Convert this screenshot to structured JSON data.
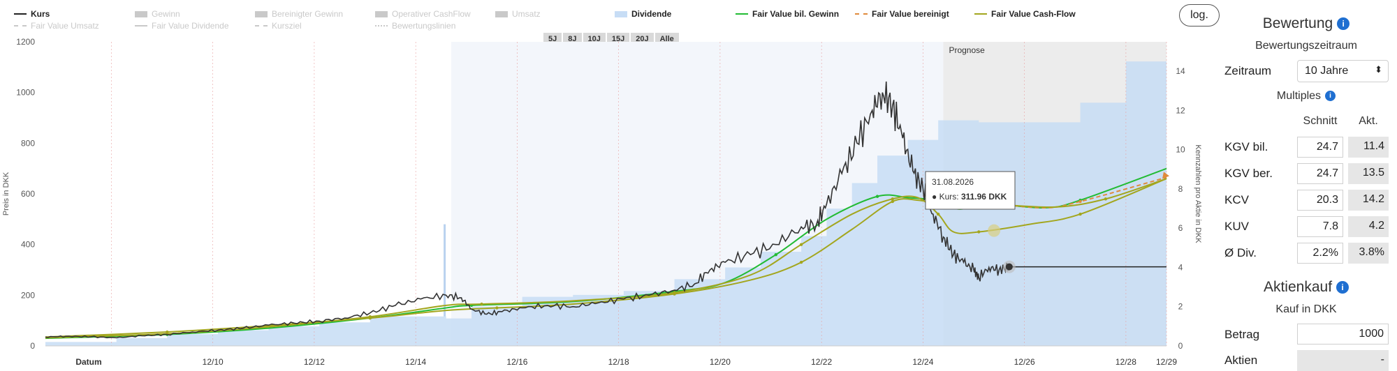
{
  "legend": [
    {
      "label": "Kurs",
      "active": true,
      "color": "#222222",
      "style": "line"
    },
    {
      "label": "Gewinn",
      "active": false,
      "color": "#c9c9c9",
      "style": "box"
    },
    {
      "label": "Bereinigter Gewinn",
      "active": false,
      "color": "#c9c9c9",
      "style": "box"
    },
    {
      "label": "Operativer CashFlow",
      "active": false,
      "color": "#c9c9c9",
      "style": "box"
    },
    {
      "label": "Umsatz",
      "active": false,
      "color": "#c9c9c9",
      "style": "box"
    },
    {
      "label": "Dividende",
      "active": true,
      "color": "#c7ddf5",
      "style": "box"
    },
    {
      "label": "Fair Value bil. Gewinn",
      "active": true,
      "color": "#22bb33",
      "style": "line"
    },
    {
      "label": "Fair Value bereinigt",
      "active": true,
      "color": "#e08a3c",
      "style": "dash"
    },
    {
      "label": "Fair Value Cash-Flow",
      "active": true,
      "color": "#a3a61e",
      "style": "line"
    },
    {
      "label": "Fair Value Umsatz",
      "active": false,
      "color": "#c9c9c9",
      "style": "dash"
    },
    {
      "label": "Fair Value Dividende",
      "active": false,
      "color": "#c9c9c9",
      "style": "line"
    },
    {
      "label": "Kursziel",
      "active": false,
      "color": "#c9c9c9",
      "style": "dash"
    },
    {
      "label": "Bewertungslinien",
      "active": false,
      "color": "#c9c9c9",
      "style": "dot"
    }
  ],
  "range_buttons": [
    "5J",
    "8J",
    "10J",
    "15J",
    "20J",
    "Alle"
  ],
  "log_label": "log.",
  "forecast_label": "Prognose",
  "tooltip": {
    "date": "31.08.2026",
    "label": "Kurs:",
    "value": "311.96 DKK"
  },
  "chart_data": {
    "type": "line",
    "ylabel_left": "Preis in DKK",
    "ylabel_right": "Kennzahlen pro Aktie in DKK",
    "y_left_range": [
      0,
      1200
    ],
    "y_left_ticks": [
      0,
      200,
      400,
      600,
      800,
      1000,
      1200
    ],
    "y_right_range": [
      0,
      15.5
    ],
    "y_right_ticks": [
      0,
      2,
      4,
      6,
      8,
      10,
      12,
      14
    ],
    "x_range": [
      2007.6,
      2029.7
    ],
    "x_tick_first": "Datum",
    "x_ticks": [
      {
        "label": "12/10",
        "x": 2010.9
      },
      {
        "label": "12/12",
        "x": 2012.9
      },
      {
        "label": "12/14",
        "x": 2014.9
      },
      {
        "label": "12/16",
        "x": 2016.9
      },
      {
        "label": "12/18",
        "x": 2018.9
      },
      {
        "label": "12/20",
        "x": 2020.9
      },
      {
        "label": "12/22",
        "x": 2022.9
      },
      {
        "label": "12/24",
        "x": 2024.9
      },
      {
        "label": "12/26",
        "x": 2026.9
      },
      {
        "label": "12/28",
        "x": 2028.9
      },
      {
        "label": "12/29",
        "x": 2029.7
      }
    ],
    "forecast_from": 2025.3,
    "series": [
      {
        "name": "Kurs",
        "color": "#333333",
        "points": [
          [
            2007.6,
            35
          ],
          [
            2008.0,
            38
          ],
          [
            2008.5,
            36
          ],
          [
            2009.0,
            32
          ],
          [
            2009.5,
            40
          ],
          [
            2010.0,
            45
          ],
          [
            2010.5,
            55
          ],
          [
            2011.0,
            62
          ],
          [
            2011.5,
            70
          ],
          [
            2012.0,
            82
          ],
          [
            2012.5,
            90
          ],
          [
            2013.0,
            98
          ],
          [
            2013.5,
            110
          ],
          [
            2014.0,
            130
          ],
          [
            2014.5,
            160
          ],
          [
            2015.0,
            185
          ],
          [
            2015.5,
            200
          ],
          [
            2015.8,
            190
          ],
          [
            2016.0,
            145
          ],
          [
            2016.3,
            125
          ],
          [
            2016.6,
            135
          ],
          [
            2017.0,
            150
          ],
          [
            2017.5,
            160
          ],
          [
            2018.0,
            155
          ],
          [
            2018.5,
            170
          ],
          [
            2019.0,
            185
          ],
          [
            2019.5,
            200
          ],
          [
            2020.0,
            220
          ],
          [
            2020.4,
            245
          ],
          [
            2020.7,
            300
          ],
          [
            2021.0,
            330
          ],
          [
            2021.5,
            360
          ],
          [
            2022.0,
            400
          ],
          [
            2022.5,
            470
          ],
          [
            2022.8,
            480
          ],
          [
            2023.0,
            560
          ],
          [
            2023.3,
            680
          ],
          [
            2023.6,
            800
          ],
          [
            2023.9,
            930
          ],
          [
            2024.1,
            1000
          ],
          [
            2024.3,
            950
          ],
          [
            2024.5,
            820
          ],
          [
            2024.7,
            690
          ],
          [
            2024.9,
            620
          ],
          [
            2025.1,
            520
          ],
          [
            2025.3,
            430
          ],
          [
            2025.5,
            360
          ],
          [
            2025.7,
            330
          ],
          [
            2025.9,
            300
          ],
          [
            2026.0,
            270
          ],
          [
            2026.2,
            310
          ],
          [
            2026.4,
            300
          ],
          [
            2026.6,
            312
          ]
        ]
      },
      {
        "name": "Fair Value bil. Gewinn",
        "color": "#22bb33",
        "points": [
          [
            2007.6,
            30
          ],
          [
            2010.0,
            45
          ],
          [
            2012.0,
            70
          ],
          [
            2014.0,
            110
          ],
          [
            2015.5,
            150
          ],
          [
            2016.0,
            160
          ],
          [
            2018.0,
            175
          ],
          [
            2020.0,
            215
          ],
          [
            2021.0,
            250
          ],
          [
            2022.0,
            360
          ],
          [
            2023.0,
            500
          ],
          [
            2024.0,
            590
          ],
          [
            2024.6,
            585
          ],
          [
            2025.1,
            575
          ],
          [
            2025.6,
            540
          ],
          [
            2026.2,
            560
          ],
          [
            2027.3,
            545
          ],
          [
            2028.0,
            575
          ],
          [
            2029.7,
            700
          ]
        ]
      },
      {
        "name": "Fair Value bereinigt",
        "color": "#e08a3c",
        "points": [
          [
            2025.6,
            540
          ],
          [
            2026.2,
            560
          ],
          [
            2027.3,
            545
          ],
          [
            2028.0,
            570
          ],
          [
            2029.7,
            665
          ]
        ]
      },
      {
        "name": "Fair Value Cash-Flow",
        "color": "#a3a61e",
        "points": [
          [
            2007.6,
            32
          ],
          [
            2010.0,
            48
          ],
          [
            2012.0,
            75
          ],
          [
            2014.0,
            115
          ],
          [
            2015.5,
            160
          ],
          [
            2016.2,
            165
          ],
          [
            2018.0,
            178
          ],
          [
            2020.0,
            210
          ],
          [
            2021.5,
            280
          ],
          [
            2022.5,
            400
          ],
          [
            2023.5,
            520
          ],
          [
            2024.3,
            580
          ],
          [
            2024.8,
            585
          ],
          [
            2025.2,
            520
          ],
          [
            2025.5,
            450
          ],
          [
            2026.0,
            450
          ],
          [
            2027.0,
            480
          ],
          [
            2028.0,
            520
          ],
          [
            2029.7,
            660
          ]
        ]
      },
      {
        "name": "Fair Value Cash-Flow 2",
        "color": "#a3a61e",
        "points": [
          [
            2007.6,
            35
          ],
          [
            2010.0,
            55
          ],
          [
            2012.0,
            80
          ],
          [
            2014.0,
            110
          ],
          [
            2015.5,
            140
          ],
          [
            2016.5,
            150
          ],
          [
            2018.0,
            165
          ],
          [
            2020.0,
            205
          ],
          [
            2021.5,
            260
          ],
          [
            2022.5,
            330
          ],
          [
            2023.5,
            460
          ],
          [
            2024.3,
            570
          ],
          [
            2024.8,
            575
          ],
          [
            2025.2,
            560
          ],
          [
            2025.6,
            555
          ],
          [
            2026.2,
            560
          ],
          [
            2027.5,
            548
          ],
          [
            2028.5,
            580
          ],
          [
            2029.7,
            660
          ]
        ]
      },
      {
        "name": "Dividende",
        "color": "#c7ddf5",
        "type": "step-area",
        "axis": "right",
        "points": [
          [
            2007.6,
            0.2
          ],
          [
            2009.0,
            0.4
          ],
          [
            2010.0,
            0.6
          ],
          [
            2011.0,
            0.8
          ],
          [
            2012.0,
            1.0
          ],
          [
            2013.0,
            1.2
          ],
          [
            2014.0,
            1.5
          ],
          [
            2015.5,
            1.4
          ],
          [
            2016.0,
            2.0
          ],
          [
            2017.0,
            2.5
          ],
          [
            2018.0,
            2.6
          ],
          [
            2019.0,
            2.8
          ],
          [
            2020.0,
            3.4
          ],
          [
            2021.0,
            4.0
          ],
          [
            2021.7,
            4.8
          ],
          [
            2022.5,
            5.6
          ],
          [
            2023.0,
            7.0
          ],
          [
            2023.5,
            8.3
          ],
          [
            2024.0,
            9.7
          ],
          [
            2024.6,
            10.5
          ],
          [
            2025.2,
            11.5
          ],
          [
            2026.0,
            11.4
          ],
          [
            2027.0,
            11.4
          ],
          [
            2028.0,
            12.4
          ],
          [
            2028.9,
            14.5
          ],
          [
            2029.7,
            14.5
          ]
        ]
      }
    ]
  },
  "panel": {
    "title": "Bewertung",
    "period_heading": "Bewertungszeitraum",
    "period_label": "Zeitraum",
    "period_value": "10 Jahre",
    "multiples_heading": "Multiples",
    "col_avg": "Schnitt",
    "col_cur": "Akt.",
    "rows": [
      {
        "label": "KGV bil.",
        "avg": "24.7",
        "cur": "11.4"
      },
      {
        "label": "KGV ber.",
        "avg": "24.7",
        "cur": "13.5"
      },
      {
        "label": "KCV",
        "avg": "20.3",
        "cur": "14.2"
      },
      {
        "label": "KUV",
        "avg": "7.8",
        "cur": "4.2"
      },
      {
        "label": "Ø Div.",
        "avg": "2.2%",
        "cur": "3.8%"
      }
    ],
    "buy_title": "Aktienkauf",
    "buy_sub": "Kauf in DKK",
    "amount_label": "Betrag",
    "amount_value": "1000",
    "shares_label": "Aktien",
    "shares_value": "-"
  }
}
